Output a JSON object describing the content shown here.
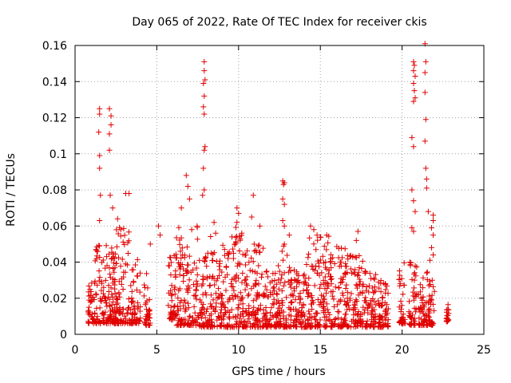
{
  "chart_data": {
    "type": "scatter",
    "title": "Day 065 of 2022, Rate Of TEC Index for receiver ckis",
    "xlabel": "GPS time / hours",
    "ylabel": "ROTI / TECUs",
    "xlim": [
      0,
      25
    ],
    "ylim": [
      0,
      0.16
    ],
    "xticks": [
      "0",
      "5",
      "10",
      "15",
      "20",
      "25"
    ],
    "yticks": [
      "0",
      "0.02",
      "0.04",
      "0.06",
      "0.08",
      "0.1",
      "0.12",
      "0.14",
      "0.16"
    ],
    "grid": true,
    "marker": "+",
    "color": "#e00000",
    "clusters": [
      {
        "x": [
          0.8,
          1.2
        ],
        "y": [
          0.006,
          0.03
        ]
      },
      {
        "x": [
          1.2,
          1.9
        ],
        "y": [
          0.006,
          0.05
        ]
      },
      {
        "x": [
          1.9,
          2.6
        ],
        "y": [
          0.006,
          0.05
        ]
      },
      {
        "x": [
          2.3,
          3.4
        ],
        "y": [
          0.006,
          0.06
        ]
      },
      {
        "x": [
          3.4,
          4.0
        ],
        "y": [
          0.006,
          0.045
        ]
      },
      {
        "x": [
          4.2,
          4.6
        ],
        "y": [
          0.005,
          0.035
        ]
      },
      {
        "x": [
          5.7,
          6.2
        ],
        "y": [
          0.008,
          0.045
        ]
      },
      {
        "x": [
          6.2,
          7.6
        ],
        "y": [
          0.005,
          0.06
        ]
      },
      {
        "x": [
          7.6,
          8.3
        ],
        "y": [
          0.004,
          0.055
        ]
      },
      {
        "x": [
          8.3,
          9.4
        ],
        "y": [
          0.004,
          0.05
        ]
      },
      {
        "x": [
          9.4,
          10.6
        ],
        "y": [
          0.004,
          0.06
        ]
      },
      {
        "x": [
          10.6,
          11.6
        ],
        "y": [
          0.004,
          0.05
        ]
      },
      {
        "x": [
          11.6,
          12.4
        ],
        "y": [
          0.004,
          0.035
        ]
      },
      {
        "x": [
          12.4,
          13.2
        ],
        "y": [
          0.004,
          0.05
        ]
      },
      {
        "x": [
          13.2,
          14.2
        ],
        "y": [
          0.004,
          0.04
        ]
      },
      {
        "x": [
          14.2,
          15.6
        ],
        "y": [
          0.004,
          0.055
        ]
      },
      {
        "x": [
          15.6,
          16.6
        ],
        "y": [
          0.004,
          0.05
        ]
      },
      {
        "x": [
          16.6,
          17.6
        ],
        "y": [
          0.004,
          0.045
        ]
      },
      {
        "x": [
          17.6,
          18.4
        ],
        "y": [
          0.004,
          0.035
        ]
      },
      {
        "x": [
          18.5,
          19.2
        ],
        "y": [
          0.004,
          0.03
        ]
      },
      {
        "x": [
          19.8,
          20.2
        ],
        "y": [
          0.006,
          0.04
        ]
      },
      {
        "x": [
          20.4,
          20.9
        ],
        "y": [
          0.005,
          0.04
        ]
      },
      {
        "x": [
          21.0,
          21.6
        ],
        "y": [
          0.005,
          0.035
        ]
      },
      {
        "x": [
          21.6,
          22.0
        ],
        "y": [
          0.005,
          0.03
        ]
      },
      {
        "x": [
          22.7,
          22.9
        ],
        "y": [
          0.007,
          0.02
        ]
      }
    ],
    "peaks": [
      {
        "x": 1.5,
        "y": 0.125
      },
      {
        "x": 1.5,
        "y": 0.122
      },
      {
        "x": 1.45,
        "y": 0.112
      },
      {
        "x": 1.5,
        "y": 0.099
      },
      {
        "x": 1.5,
        "y": 0.092
      },
      {
        "x": 1.55,
        "y": 0.077
      },
      {
        "x": 1.5,
        "y": 0.063
      },
      {
        "x": 2.1,
        "y": 0.125
      },
      {
        "x": 2.2,
        "y": 0.121
      },
      {
        "x": 2.2,
        "y": 0.116
      },
      {
        "x": 2.1,
        "y": 0.111
      },
      {
        "x": 2.1,
        "y": 0.102
      },
      {
        "x": 2.15,
        "y": 0.077
      },
      {
        "x": 2.3,
        "y": 0.07
      },
      {
        "x": 2.6,
        "y": 0.064
      },
      {
        "x": 2.8,
        "y": 0.058
      },
      {
        "x": 3.1,
        "y": 0.078
      },
      {
        "x": 3.3,
        "y": 0.078
      },
      {
        "x": 4.6,
        "y": 0.05
      },
      {
        "x": 5.1,
        "y": 0.06
      },
      {
        "x": 5.2,
        "y": 0.055
      },
      {
        "x": 6.8,
        "y": 0.088
      },
      {
        "x": 6.9,
        "y": 0.082
      },
      {
        "x": 6.5,
        "y": 0.07
      },
      {
        "x": 7.0,
        "y": 0.075
      },
      {
        "x": 7.9,
        "y": 0.151
      },
      {
        "x": 7.9,
        "y": 0.146
      },
      {
        "x": 7.95,
        "y": 0.141
      },
      {
        "x": 7.85,
        "y": 0.139
      },
      {
        "x": 7.9,
        "y": 0.132
      },
      {
        "x": 7.85,
        "y": 0.126
      },
      {
        "x": 7.9,
        "y": 0.122
      },
      {
        "x": 7.95,
        "y": 0.104
      },
      {
        "x": 7.9,
        "y": 0.102
      },
      {
        "x": 7.85,
        "y": 0.092
      },
      {
        "x": 7.9,
        "y": 0.08
      },
      {
        "x": 7.8,
        "y": 0.077
      },
      {
        "x": 8.5,
        "y": 0.062
      },
      {
        "x": 8.6,
        "y": 0.056
      },
      {
        "x": 9.9,
        "y": 0.07
      },
      {
        "x": 10.0,
        "y": 0.067
      },
      {
        "x": 9.9,
        "y": 0.062
      },
      {
        "x": 10.8,
        "y": 0.065
      },
      {
        "x": 10.9,
        "y": 0.077
      },
      {
        "x": 11.3,
        "y": 0.06
      },
      {
        "x": 12.7,
        "y": 0.085
      },
      {
        "x": 12.8,
        "y": 0.084
      },
      {
        "x": 12.75,
        "y": 0.083
      },
      {
        "x": 12.7,
        "y": 0.075
      },
      {
        "x": 12.8,
        "y": 0.072
      },
      {
        "x": 12.7,
        "y": 0.063
      },
      {
        "x": 12.8,
        "y": 0.06
      },
      {
        "x": 13.1,
        "y": 0.055
      },
      {
        "x": 14.4,
        "y": 0.06
      },
      {
        "x": 14.6,
        "y": 0.058
      },
      {
        "x": 14.8,
        "y": 0.055
      },
      {
        "x": 17.3,
        "y": 0.057
      },
      {
        "x": 17.2,
        "y": 0.052
      },
      {
        "x": 20.7,
        "y": 0.151
      },
      {
        "x": 20.75,
        "y": 0.149
      },
      {
        "x": 20.7,
        "y": 0.146
      },
      {
        "x": 20.8,
        "y": 0.143
      },
      {
        "x": 20.7,
        "y": 0.139
      },
      {
        "x": 20.75,
        "y": 0.135
      },
      {
        "x": 20.7,
        "y": 0.129
      },
      {
        "x": 20.8,
        "y": 0.131
      },
      {
        "x": 20.6,
        "y": 0.109
      },
      {
        "x": 20.7,
        "y": 0.104
      },
      {
        "x": 20.6,
        "y": 0.08
      },
      {
        "x": 20.7,
        "y": 0.074
      },
      {
        "x": 20.8,
        "y": 0.068
      },
      {
        "x": 20.6,
        "y": 0.059
      },
      {
        "x": 20.7,
        "y": 0.057
      },
      {
        "x": 21.4,
        "y": 0.161
      },
      {
        "x": 21.45,
        "y": 0.151
      },
      {
        "x": 21.4,
        "y": 0.145
      },
      {
        "x": 21.4,
        "y": 0.134
      },
      {
        "x": 21.45,
        "y": 0.119
      },
      {
        "x": 21.4,
        "y": 0.107
      },
      {
        "x": 21.45,
        "y": 0.092
      },
      {
        "x": 21.5,
        "y": 0.086
      },
      {
        "x": 21.5,
        "y": 0.081
      },
      {
        "x": 21.6,
        "y": 0.068
      },
      {
        "x": 21.9,
        "y": 0.066
      },
      {
        "x": 21.9,
        "y": 0.063
      },
      {
        "x": 21.8,
        "y": 0.059
      },
      {
        "x": 21.9,
        "y": 0.055
      },
      {
        "x": 21.8,
        "y": 0.048
      },
      {
        "x": 21.9,
        "y": 0.044
      },
      {
        "x": 21.7,
        "y": 0.041
      }
    ]
  }
}
